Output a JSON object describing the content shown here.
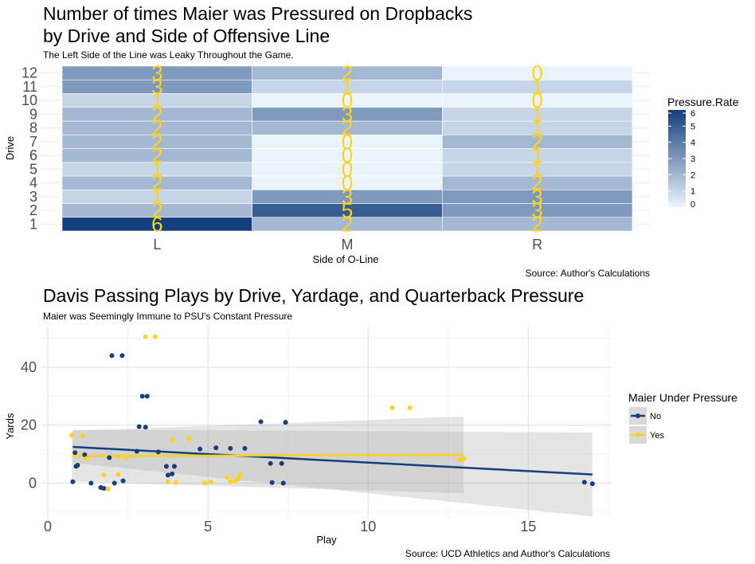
{
  "chart_data": [
    {
      "type": "heatmap",
      "title_line1": "Number of times Maier was Pressured on Dropbacks",
      "title_line2": "by Drive and Side of Offensive Line",
      "subtitle": "The Left Side of the Line was Leaky Throughout the Game.",
      "xlabel": "Side of O-Line",
      "ylabel": "Drive",
      "caption": "Source: Author's Calculations",
      "x_categories": [
        "L",
        "M",
        "R"
      ],
      "y_categories": [
        "1",
        "2",
        "3",
        "4",
        "5",
        "6",
        "7",
        "8",
        "9",
        "10",
        "11",
        "12"
      ],
      "values": [
        [
          6,
          2,
          2
        ],
        [
          2,
          5,
          3
        ],
        [
          1,
          3,
          3
        ],
        [
          2,
          0,
          2
        ],
        [
          1,
          0,
          1
        ],
        [
          2,
          0,
          1
        ],
        [
          2,
          0,
          2
        ],
        [
          2,
          2,
          1
        ],
        [
          2,
          3,
          1
        ],
        [
          1,
          0,
          0
        ],
        [
          3,
          1,
          1
        ],
        [
          3,
          2,
          0
        ]
      ],
      "legend": {
        "title": "Pressure.Rate",
        "ticks": [
          "6",
          "5",
          "4",
          "3",
          "2",
          "1",
          "0"
        ],
        "min": 0,
        "max": 6,
        "low_color": "#EAF4FD",
        "high_color": "#143F7C"
      },
      "label_color": "#FFD21F"
    },
    {
      "type": "scatter",
      "title": "Davis Passing Plays by Drive, Yardage, and Quarterback Pressure",
      "subtitle": "Maier was Seemingly Immune to PSU's Constant Pressure",
      "xlabel": "Play",
      "ylabel": "Yards",
      "caption": "Source: UCD Athletics and Author's Calculations",
      "xlim": [
        -0.2,
        17.6
      ],
      "ylim": [
        -12.5,
        54
      ],
      "x_ticks": [
        "0",
        "5",
        "10",
        "15"
      ],
      "y_ticks": [
        "0",
        "20",
        "40"
      ],
      "legend": {
        "title": "Maier Under Pressure",
        "entries": [
          "No",
          "Yes"
        ]
      },
      "series": [
        {
          "name": "No",
          "color": "#143F7C",
          "points": [
            [
              0.78,
              0.5
            ],
            [
              0.85,
              10.5
            ],
            [
              0.88,
              5.8
            ],
            [
              0.93,
              6.2
            ],
            [
              1.15,
              9.8
            ],
            [
              1.35,
              0.0
            ],
            [
              1.65,
              -1.5
            ],
            [
              1.75,
              -1.8
            ],
            [
              1.92,
              8.8
            ],
            [
              2.0,
              44.0
            ],
            [
              2.08,
              0.0
            ],
            [
              2.32,
              44.0
            ],
            [
              2.35,
              0.8
            ],
            [
              2.78,
              11.0
            ],
            [
              2.85,
              19.5
            ],
            [
              2.95,
              30.0
            ],
            [
              3.05,
              19.3
            ],
            [
              3.1,
              30.0
            ],
            [
              3.45,
              10.8
            ],
            [
              3.7,
              5.8
            ],
            [
              3.75,
              2.8
            ],
            [
              3.88,
              3.2
            ],
            [
              3.95,
              5.8
            ],
            [
              4.75,
              11.8
            ],
            [
              5.25,
              12.2
            ],
            [
              5.7,
              12.0
            ],
            [
              6.15,
              12.0
            ],
            [
              6.65,
              21.2
            ],
            [
              6.95,
              6.8
            ],
            [
              7.0,
              0.2
            ],
            [
              7.3,
              6.8
            ],
            [
              7.35,
              0.0
            ],
            [
              7.42,
              21.0
            ],
            [
              16.75,
              0.3
            ],
            [
              17.0,
              -0.2
            ]
          ],
          "fit": {
            "x": [
              0.78,
              17.0
            ],
            "y": [
              12.5,
              3.0
            ]
          },
          "band": {
            "x": [
              0.78,
              17.0
            ],
            "lo": [
              7.0,
              -11.5
            ],
            "hi": [
              18.5,
              17.5
            ]
          }
        },
        {
          "name": "Yes",
          "color": "#FFD21F",
          "points": [
            [
              0.75,
              16.5
            ],
            [
              1.08,
              16.3
            ],
            [
              1.2,
              8.5
            ],
            [
              1.75,
              2.8
            ],
            [
              1.88,
              -2.0
            ],
            [
              2.2,
              9.0
            ],
            [
              2.2,
              3.0
            ],
            [
              2.45,
              8.8
            ],
            [
              3.05,
              50.5
            ],
            [
              3.35,
              50.5
            ],
            [
              3.75,
              0.5
            ],
            [
              3.9,
              15.0
            ],
            [
              4.0,
              0.2
            ],
            [
              4.4,
              15.3
            ],
            [
              4.9,
              0.0
            ],
            [
              5.1,
              0.3
            ],
            [
              5.6,
              2.0
            ],
            [
              5.7,
              0.5
            ],
            [
              5.85,
              0.8
            ],
            [
              5.95,
              1.5
            ],
            [
              6.0,
              3.0
            ],
            [
              10.75,
              26.0
            ],
            [
              11.3,
              26.0
            ],
            [
              12.85,
              8.0
            ],
            [
              12.98,
              8.3
            ]
          ],
          "fit": {
            "x": [
              0.75,
              12.98
            ],
            "y": [
              9.3,
              9.8
            ]
          },
          "band": {
            "x": [
              0.75,
              12.98
            ],
            "lo": [
              0.5,
              -3.5
            ],
            "hi": [
              18.0,
              23.0
            ]
          }
        }
      ]
    }
  ]
}
